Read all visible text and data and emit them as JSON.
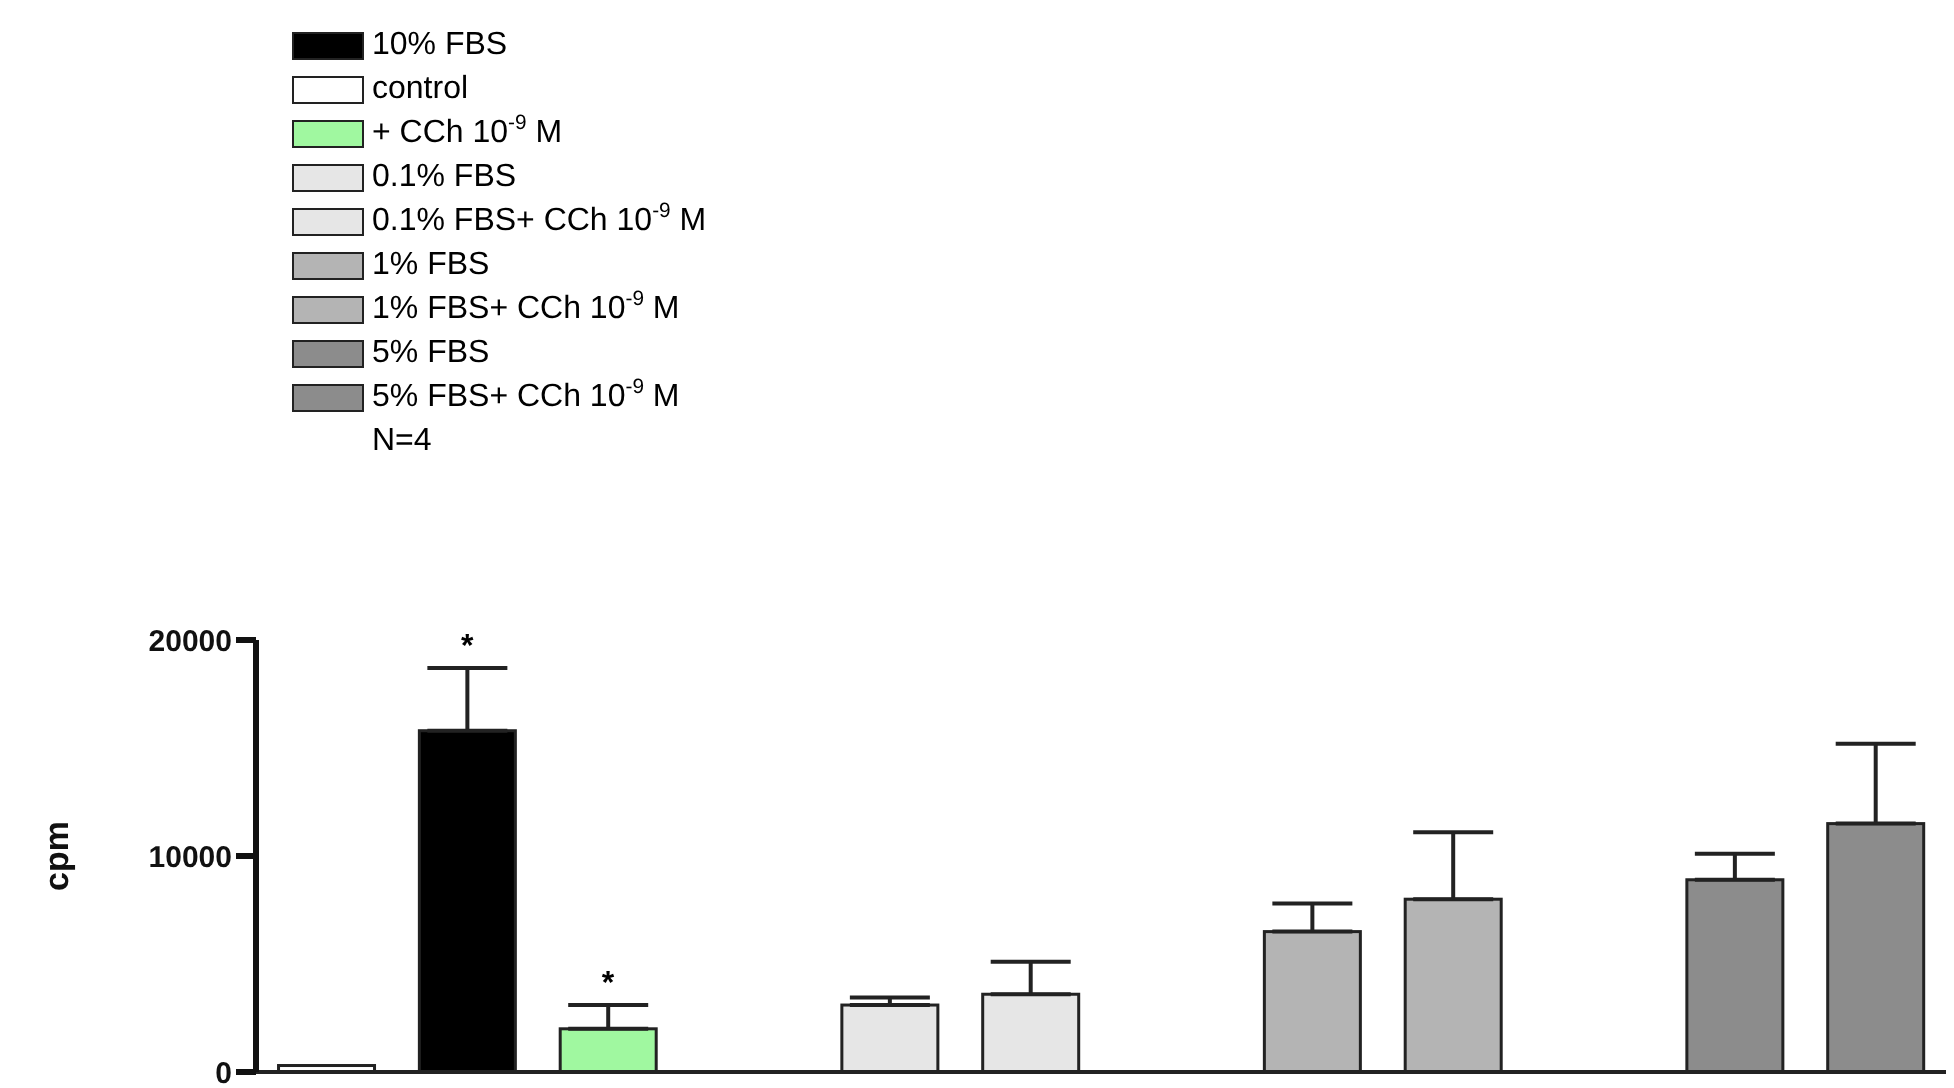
{
  "chart_data": {
    "type": "bar",
    "ylabel": "cpm",
    "categories": [
      null,
      null,
      null,
      null,
      null,
      null,
      null,
      null,
      null,
      null,
      null,
      null
    ],
    "ylim": [
      0,
      20000
    ],
    "yticks": [
      0,
      10000,
      20000
    ],
    "tick_labels": "y",
    "legend": "top left",
    "annotations": [
      "N=4"
    ],
    "series": [
      {
        "name": "control",
        "color": "#ffffff",
        "values": [
          300,
          null,
          null,
          null,
          null,
          null,
          null,
          null,
          null,
          null,
          null,
          null
        ]
      },
      {
        "name": "10% FBS",
        "color": "#000000",
        "values": [
          null,
          15800,
          null,
          null,
          null,
          null,
          null,
          null,
          null,
          null,
          null,
          null
        ],
        "errors": [
          null,
          [
            15800,
            18700
          ],
          null,
          null,
          null,
          null,
          null,
          null,
          null,
          null,
          null,
          null
        ],
        "value_labels": [
          null,
          "*",
          null,
          null,
          null,
          null,
          null,
          null,
          null,
          null,
          null,
          null
        ]
      },
      {
        "name": "+ CCh 10$^{-9}$ M",
        "color": "#a0f8a0",
        "values": [
          null,
          null,
          2000,
          null,
          null,
          null,
          null,
          null,
          null,
          null,
          null,
          null
        ],
        "errors": [
          null,
          null,
          [
            2000,
            3100
          ],
          null,
          null,
          null,
          null,
          null,
          null,
          null,
          null,
          null
        ],
        "value_labels": [
          null,
          null,
          "*",
          null,
          null,
          null,
          null,
          null,
          null,
          null,
          null,
          null
        ]
      },
      {
        "name": "0.1% FBS",
        "color": "#e6e6e6",
        "values": [
          null,
          null,
          null,
          null,
          3100,
          null,
          null,
          null,
          null,
          null,
          null,
          null
        ],
        "errors": [
          null,
          null,
          null,
          null,
          [
            3100,
            3450
          ],
          null,
          null,
          null,
          null,
          null,
          null,
          null
        ]
      },
      {
        "name": "0.1% FBS+ CCh 10$^{-9}$ M",
        "color": "#e6e6e6",
        "values": [
          null,
          null,
          null,
          null,
          null,
          3600,
          null,
          null,
          null,
          null,
          null,
          null
        ],
        "errors": [
          null,
          null,
          null,
          null,
          null,
          [
            3600,
            5100
          ],
          null,
          null,
          null,
          null,
          null,
          null
        ]
      },
      {
        "name": "1% FBS",
        "color": "#b4b4b4",
        "values": [
          null,
          null,
          null,
          null,
          null,
          null,
          null,
          6500,
          null,
          null,
          null,
          null
        ],
        "errors": [
          null,
          null,
          null,
          null,
          null,
          null,
          null,
          [
            6500,
            7800
          ],
          null,
          null,
          null,
          null
        ]
      },
      {
        "name": "1% FBS+ CCh 10$^{-9}$ M",
        "color": "#b4b4b4",
        "values": [
          null,
          null,
          null,
          null,
          null,
          null,
          null,
          null,
          8000,
          null,
          null,
          null
        ],
        "errors": [
          null,
          null,
          null,
          null,
          null,
          null,
          null,
          null,
          [
            8000,
            11100
          ],
          null,
          null,
          null
        ]
      },
      {
        "name": "5% FBS",
        "color": "#8c8c8c",
        "values": [
          null,
          null,
          null,
          null,
          null,
          null,
          null,
          null,
          null,
          null,
          8900,
          null
        ],
        "errors": [
          null,
          null,
          null,
          null,
          null,
          null,
          null,
          null,
          null,
          null,
          [
            8900,
            10100
          ],
          null
        ]
      },
      {
        "name": "5% FBS+ CCh 10$^{-9}$ M",
        "color": "#8c8c8c",
        "values": [
          null,
          null,
          null,
          null,
          null,
          null,
          null,
          null,
          null,
          null,
          null,
          11500
        ],
        "errors": [
          null,
          null,
          null,
          null,
          null,
          null,
          null,
          null,
          null,
          null,
          null,
          [
            11500,
            15200
          ]
        ]
      }
    ]
  }
}
